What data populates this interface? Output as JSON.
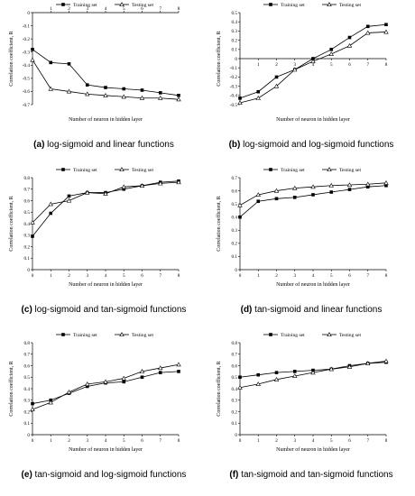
{
  "chart_data": [
    {
      "type": "line",
      "caption_letter": "(a)",
      "caption_text": " log-sigmoid and linear functions",
      "xlabel": "Number of neuron in hidden layer",
      "ylabel": "Correlation coefficient, R",
      "x": [
        0,
        1,
        2,
        3,
        4,
        5,
        6,
        7,
        8
      ],
      "xlim": [
        0,
        8
      ],
      "ylim": [
        -0.7,
        0
      ],
      "xticks": [
        1,
        2,
        3,
        4,
        5,
        6,
        7,
        8
      ],
      "yticks": [
        0,
        -0.1,
        -0.2,
        -0.3,
        -0.4,
        -0.5,
        -0.6,
        -0.7
      ],
      "ytick_labels": [
        "0",
        "-0.1",
        "-0.2",
        "-0.3",
        "-0.4",
        "-0.5",
        "-0.6",
        "-0.7"
      ],
      "legend_position": "top",
      "series": [
        {
          "name": "Training set",
          "marker": "square",
          "values": [
            -0.28,
            -0.38,
            -0.39,
            -0.55,
            -0.57,
            -0.58,
            -0.59,
            -0.61,
            -0.63
          ]
        },
        {
          "name": "Testing set",
          "marker": "triangle",
          "values": [
            -0.36,
            -0.58,
            -0.6,
            -0.62,
            -0.63,
            -0.64,
            -0.65,
            -0.65,
            -0.66
          ]
        }
      ]
    },
    {
      "type": "line",
      "caption_letter": "(b)",
      "caption_text": " log-sigmoid and log-sigmoid functions",
      "xlabel": "Number of neuron in hidden layer",
      "ylabel": "Correlation coefficient, R",
      "x": [
        0,
        1,
        2,
        3,
        4,
        5,
        6,
        7,
        8
      ],
      "xlim": [
        0,
        8
      ],
      "ylim": [
        -0.5,
        0.5
      ],
      "xticks": [
        1,
        2,
        3,
        4,
        5,
        6,
        7,
        8
      ],
      "yticks": [
        0.5,
        0.4,
        0.3,
        0.2,
        0.1,
        0,
        -0.1,
        -0.2,
        -0.3,
        -0.4,
        -0.5
      ],
      "ytick_labels": [
        "0.5",
        "0.4",
        "0.3",
        "0.2",
        "0.1",
        "0",
        "-0.1",
        "-0.2",
        "-0.3",
        "-0.4",
        "-0.5"
      ],
      "legend_position": "top",
      "series": [
        {
          "name": "Training set",
          "marker": "square",
          "values": [
            -0.43,
            -0.36,
            -0.2,
            -0.12,
            0.0,
            0.1,
            0.23,
            0.35,
            0.37
          ]
        },
        {
          "name": "Testing set",
          "marker": "triangle",
          "values": [
            -0.48,
            -0.43,
            -0.3,
            -0.12,
            -0.03,
            0.05,
            0.14,
            0.28,
            0.29
          ]
        }
      ]
    },
    {
      "type": "line",
      "caption_letter": "(c)",
      "caption_text": " log-sigmoid and tan-sigmoid functions",
      "xlabel": "Number of neuron in hidden layer",
      "ylabel": "Correlation coefficient, R",
      "x": [
        0,
        1,
        2,
        3,
        4,
        5,
        6,
        7,
        8
      ],
      "xlim": [
        0,
        8
      ],
      "ylim": [
        0,
        0.8
      ],
      "xticks": [
        0,
        1,
        2,
        3,
        4,
        5,
        6,
        7,
        8
      ],
      "yticks": [
        0,
        0.1,
        0.2,
        0.3,
        0.4,
        0.5,
        0.6,
        0.7,
        0.8
      ],
      "ytick_labels": [
        "0",
        "0.1",
        "0.2",
        "0.3",
        "0.4",
        "0.5",
        "0.6",
        "0.7",
        "0.8"
      ],
      "legend_position": "top",
      "series": [
        {
          "name": "Training set",
          "marker": "square",
          "values": [
            0.29,
            0.49,
            0.64,
            0.67,
            0.67,
            0.7,
            0.73,
            0.76,
            0.77
          ]
        },
        {
          "name": "Testing set",
          "marker": "triangle",
          "values": [
            0.41,
            0.57,
            0.6,
            0.67,
            0.66,
            0.72,
            0.73,
            0.75,
            0.76
          ]
        }
      ]
    },
    {
      "type": "line",
      "caption_letter": "(d)",
      "caption_text": " tan-sigmoid and linear functions",
      "xlabel": "Number of neuron in hidden layer",
      "ylabel": "Correlation coefficient, R",
      "x": [
        0,
        1,
        2,
        3,
        4,
        5,
        6,
        7,
        8
      ],
      "xlim": [
        0,
        8
      ],
      "ylim": [
        0,
        0.7
      ],
      "xticks": [
        0,
        1,
        2,
        3,
        4,
        5,
        6,
        7,
        8
      ],
      "yticks": [
        0,
        0.1,
        0.2,
        0.3,
        0.4,
        0.5,
        0.6,
        0.7
      ],
      "ytick_labels": [
        "0",
        "0.1",
        "0.2",
        "0.3",
        "0.4",
        "0.5",
        "0.6",
        "0.7"
      ],
      "legend_position": "top",
      "series": [
        {
          "name": "Training set",
          "marker": "square",
          "values": [
            0.4,
            0.52,
            0.54,
            0.55,
            0.57,
            0.59,
            0.61,
            0.63,
            0.64
          ]
        },
        {
          "name": "Testing set",
          "marker": "triangle",
          "values": [
            0.49,
            0.57,
            0.6,
            0.62,
            0.63,
            0.64,
            0.645,
            0.65,
            0.66
          ]
        }
      ]
    },
    {
      "type": "line",
      "caption_letter": "(e)",
      "caption_text": " tan-sigmoid and log-sigmoid functions",
      "xlabel": "Number of neuron in hidden layer",
      "ylabel": "Correlation coefficient, R",
      "x": [
        0,
        1,
        2,
        3,
        4,
        5,
        6,
        7,
        8
      ],
      "xlim": [
        0,
        8
      ],
      "ylim": [
        0,
        0.8
      ],
      "xticks": [
        0,
        1,
        2,
        3,
        4,
        5,
        6,
        7,
        8
      ],
      "yticks": [
        0,
        0.1,
        0.2,
        0.3,
        0.4,
        0.5,
        0.6,
        0.7,
        0.8
      ],
      "ytick_labels": [
        "0",
        "0.1",
        "0.2",
        "0.3",
        "0.4",
        "0.5",
        "0.6",
        "0.7",
        "0.8"
      ],
      "legend_position": "top",
      "series": [
        {
          "name": "Training set",
          "marker": "square",
          "values": [
            0.27,
            0.3,
            0.36,
            0.42,
            0.45,
            0.46,
            0.5,
            0.54,
            0.55
          ]
        },
        {
          "name": "Testing set",
          "marker": "triangle",
          "values": [
            0.22,
            0.28,
            0.37,
            0.44,
            0.46,
            0.49,
            0.55,
            0.58,
            0.61
          ]
        }
      ]
    },
    {
      "type": "line",
      "caption_letter": "(f)",
      "caption_text": " tan-sigmoid and tan-sigmoid functions",
      "xlabel": "Number of neuron in hidden layer",
      "ylabel": "Correlation coefficient, R",
      "x": [
        0,
        1,
        2,
        3,
        4,
        5,
        6,
        7,
        8
      ],
      "xlim": [
        0,
        8
      ],
      "ylim": [
        0,
        0.8
      ],
      "xticks": [
        0,
        1,
        2,
        3,
        4,
        5,
        6,
        7,
        8
      ],
      "yticks": [
        0,
        0.1,
        0.2,
        0.3,
        0.4,
        0.5,
        0.6,
        0.7,
        0.8
      ],
      "ytick_labels": [
        "0",
        "0.1",
        "0.2",
        "0.3",
        "0.4",
        "0.5",
        "0.6",
        "0.7",
        "0.8"
      ],
      "legend_position": "top",
      "series": [
        {
          "name": "Training set",
          "marker": "square",
          "values": [
            0.5,
            0.52,
            0.54,
            0.55,
            0.56,
            0.57,
            0.6,
            0.62,
            0.63
          ]
        },
        {
          "name": "Testing set",
          "marker": "triangle",
          "values": [
            0.41,
            0.44,
            0.48,
            0.51,
            0.54,
            0.57,
            0.59,
            0.62,
            0.64
          ]
        }
      ]
    }
  ]
}
